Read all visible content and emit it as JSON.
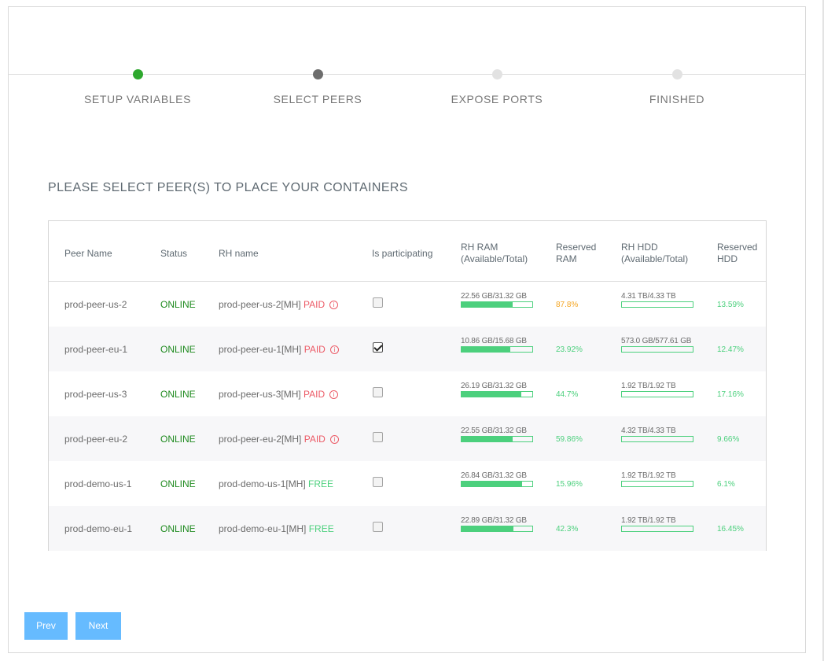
{
  "steps": [
    {
      "label": "SETUP VARIABLES",
      "state": "done",
      "color": "#2ea82e"
    },
    {
      "label": "SELECT PEERS",
      "state": "active",
      "color": "#6d6d6d"
    },
    {
      "label": "EXPOSE PORTS",
      "state": "pending",
      "color": "#e2e2e2"
    },
    {
      "label": "FINISHED",
      "state": "pending",
      "color": "#e2e2e2"
    }
  ],
  "heading": "PLEASE SELECT PEER(S) TO PLACE YOUR CONTAINERS",
  "table": {
    "headers": {
      "peer_name": "Peer Name",
      "status": "Status",
      "rh_name": "RH name",
      "participating": "Is participating",
      "rh_ram_1": "RH RAM",
      "rh_ram_2": "(Available/Total)",
      "reserved_ram_1": "Reserved",
      "reserved_ram_2": "RAM",
      "rh_hdd_1": "RH HDD",
      "rh_hdd_2": "(Available/Total)",
      "reserved_hdd_1": "Reserved",
      "reserved_hdd_2": "HDD"
    },
    "rows": [
      {
        "peer": "prod-peer-us-2",
        "status": "ONLINE",
        "rh": "prod-peer-us-2[MH]",
        "tier": "PAID",
        "info": true,
        "checked": false,
        "ram": "22.56 GB/31.32 GB",
        "ram_fill": 0.72,
        "res_ram": "87.8%",
        "res_ram_color": "orange",
        "hdd": "4.31 TB/4.33 TB",
        "hdd_fill": 0.0,
        "res_hdd": "13.59%"
      },
      {
        "peer": "prod-peer-eu-1",
        "status": "ONLINE",
        "rh": "prod-peer-eu-1[MH]",
        "tier": "PAID",
        "info": true,
        "checked": true,
        "ram": "10.86 GB/15.68 GB",
        "ram_fill": 0.69,
        "res_ram": "23.92%",
        "res_ram_color": "green",
        "hdd": "573.0 GB/577.61 GB",
        "hdd_fill": 0.0,
        "res_hdd": "12.47%"
      },
      {
        "peer": "prod-peer-us-3",
        "status": "ONLINE",
        "rh": "prod-peer-us-3[MH]",
        "tier": "PAID",
        "info": true,
        "checked": false,
        "ram": "26.19 GB/31.32 GB",
        "ram_fill": 0.84,
        "res_ram": "44.7%",
        "res_ram_color": "green",
        "hdd": "1.92 TB/1.92 TB",
        "hdd_fill": 0.0,
        "res_hdd": "17.16%"
      },
      {
        "peer": "prod-peer-eu-2",
        "status": "ONLINE",
        "rh": "prod-peer-eu-2[MH]",
        "tier": "PAID",
        "info": true,
        "checked": false,
        "ram": "22.55 GB/31.32 GB",
        "ram_fill": 0.72,
        "res_ram": "59.86%",
        "res_ram_color": "green",
        "hdd": "4.32 TB/4.33 TB",
        "hdd_fill": 0.0,
        "res_hdd": "9.66%"
      },
      {
        "peer": "prod-demo-us-1",
        "status": "ONLINE",
        "rh": "prod-demo-us-1[MH]",
        "tier": "FREE",
        "info": false,
        "checked": false,
        "ram": "26.84 GB/31.32 GB",
        "ram_fill": 0.86,
        "res_ram": "15.96%",
        "res_ram_color": "green",
        "hdd": "1.92 TB/1.92 TB",
        "hdd_fill": 0.0,
        "res_hdd": "6.1%"
      },
      {
        "peer": "prod-demo-eu-1",
        "status": "ONLINE",
        "rh": "prod-demo-eu-1[MH]",
        "tier": "FREE",
        "info": false,
        "checked": false,
        "ram": "22.89 GB/31.32 GB",
        "ram_fill": 0.73,
        "res_ram": "42.3%",
        "res_ram_color": "green",
        "hdd": "1.92 TB/1.92 TB",
        "hdd_fill": 0.0,
        "res_hdd": "16.45%"
      }
    ]
  },
  "buttons": {
    "prev": "Prev",
    "next": "Next"
  },
  "icons": {
    "info": "info-circle-icon",
    "check": "check-icon"
  }
}
